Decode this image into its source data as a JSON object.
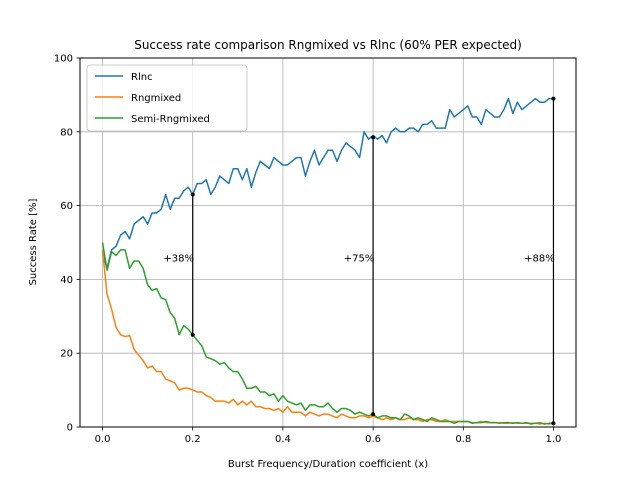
{
  "chart_data": {
    "type": "line",
    "title": "Success rate comparison Rngmixed vs Rlnc (60% PER expected)",
    "xlabel": "Burst Frequency/Duration coefficient (x)",
    "ylabel": "Success Rate [%]",
    "xlim": [
      -0.05,
      1.05
    ],
    "ylim": [
      0,
      100
    ],
    "xticks": [
      0.0,
      0.2,
      0.4,
      0.6,
      0.8,
      1.0
    ],
    "xtick_labels": [
      "0.0",
      "0.2",
      "0.4",
      "0.6",
      "0.8",
      "1.0"
    ],
    "yticks": [
      0,
      20,
      40,
      60,
      80,
      100
    ],
    "ytick_labels": [
      "0",
      "20",
      "40",
      "60",
      "80",
      "100"
    ],
    "grid": true,
    "legend_position": "top-left",
    "series": [
      {
        "name": "Rlnc",
        "color": "#1f77b4",
        "x": [
          0.0,
          0.01,
          0.02,
          0.03,
          0.04,
          0.05,
          0.06,
          0.07,
          0.08,
          0.09,
          0.1,
          0.11,
          0.12,
          0.13,
          0.14,
          0.15,
          0.16,
          0.17,
          0.18,
          0.19,
          0.2,
          0.21,
          0.22,
          0.23,
          0.24,
          0.25,
          0.26,
          0.27,
          0.28,
          0.29,
          0.3,
          0.31,
          0.32,
          0.33,
          0.34,
          0.35,
          0.36,
          0.37,
          0.38,
          0.39,
          0.4,
          0.41,
          0.42,
          0.43,
          0.44,
          0.45,
          0.46,
          0.47,
          0.48,
          0.49,
          0.5,
          0.51,
          0.52,
          0.53,
          0.54,
          0.55,
          0.56,
          0.57,
          0.58,
          0.59,
          0.6,
          0.61,
          0.62,
          0.63,
          0.64,
          0.65,
          0.66,
          0.67,
          0.68,
          0.69,
          0.7,
          0.71,
          0.72,
          0.73,
          0.74,
          0.75,
          0.76,
          0.77,
          0.78,
          0.79,
          0.8,
          0.81,
          0.82,
          0.83,
          0.84,
          0.85,
          0.86,
          0.87,
          0.88,
          0.89,
          0.9,
          0.91,
          0.92,
          0.93,
          0.94,
          0.95,
          0.96,
          0.97,
          0.98,
          0.99,
          1.0
        ],
        "y": [
          47,
          43,
          48,
          49,
          52,
          53,
          51,
          55,
          56,
          57,
          55,
          58,
          58,
          59,
          63,
          59,
          62,
          62,
          64,
          65,
          63,
          66,
          66,
          67,
          63,
          65,
          68,
          67,
          66,
          70,
          70,
          67,
          70,
          65,
          69,
          72,
          71,
          70,
          73,
          72,
          71,
          71,
          72,
          73,
          73,
          68,
          72,
          75,
          71,
          73,
          75,
          75,
          72,
          75,
          77,
          76,
          75,
          73,
          80,
          78,
          79,
          78,
          79,
          77,
          80,
          81,
          80,
          80,
          81,
          81,
          80,
          82,
          82,
          83,
          81,
          81,
          81,
          86,
          84,
          85,
          86,
          87,
          84,
          84,
          82,
          86,
          85,
          84,
          84,
          86,
          89,
          85,
          88,
          86,
          87,
          88,
          89,
          88,
          88,
          89,
          89
        ]
      },
      {
        "name": "Rngmixed",
        "color": "#ff7f0e",
        "x": [
          0.0,
          0.01,
          0.02,
          0.03,
          0.04,
          0.05,
          0.06,
          0.07,
          0.08,
          0.09,
          0.1,
          0.11,
          0.12,
          0.13,
          0.14,
          0.15,
          0.16,
          0.17,
          0.18,
          0.19,
          0.2,
          0.21,
          0.22,
          0.23,
          0.24,
          0.25,
          0.26,
          0.27,
          0.28,
          0.29,
          0.3,
          0.31,
          0.32,
          0.33,
          0.34,
          0.35,
          0.36,
          0.37,
          0.38,
          0.39,
          0.4,
          0.41,
          0.42,
          0.43,
          0.44,
          0.45,
          0.46,
          0.47,
          0.48,
          0.49,
          0.5,
          0.51,
          0.52,
          0.53,
          0.54,
          0.55,
          0.56,
          0.57,
          0.58,
          0.59,
          0.6,
          0.61,
          0.62,
          0.63,
          0.64,
          0.65,
          0.66,
          0.67,
          0.68,
          0.69,
          0.7,
          0.71,
          0.72,
          0.73,
          0.74,
          0.75,
          0.76,
          0.77,
          0.78,
          0.79,
          0.8,
          0.81,
          0.82,
          0.83,
          0.84,
          0.85,
          0.86,
          0.87,
          0.88,
          0.89,
          0.9,
          0.91,
          0.92,
          0.93,
          0.94,
          0.95,
          0.96,
          0.97,
          0.98,
          0.99,
          1.0
        ],
        "y": [
          48,
          36,
          32,
          27,
          25,
          24.5,
          24.8,
          21,
          19.5,
          18,
          16,
          16.5,
          15,
          15,
          13,
          12.5,
          12,
          10,
          10.5,
          10.5,
          10,
          9.5,
          9.5,
          8.5,
          8,
          7,
          7,
          7,
          6.5,
          7.5,
          6,
          7,
          6,
          7,
          5.5,
          5.5,
          5,
          5,
          4.5,
          5,
          4,
          5.5,
          4,
          4,
          4,
          3,
          4,
          3.5,
          3,
          3.5,
          3.5,
          3,
          2.5,
          3.5,
          3,
          2.5,
          2.5,
          3,
          3,
          2.5,
          3,
          2.5,
          2,
          2.5,
          2,
          2.5,
          2,
          2,
          2.5,
          2,
          2,
          1.5,
          2,
          2,
          1.5,
          1.5,
          2,
          1.5,
          1.5,
          1.5,
          1.5,
          1.5,
          1.2,
          1.2,
          1.5,
          1.2,
          1.2,
          1.2,
          1.2,
          1,
          1,
          1.2,
          1,
          1,
          1,
          1,
          1,
          0.8,
          1,
          0.8,
          1
        ]
      },
      {
        "name": "Semi-Rngmixed",
        "color": "#2ca02c",
        "x": [
          0.0,
          0.01,
          0.02,
          0.03,
          0.04,
          0.05,
          0.06,
          0.07,
          0.08,
          0.09,
          0.1,
          0.11,
          0.12,
          0.13,
          0.14,
          0.15,
          0.16,
          0.17,
          0.18,
          0.19,
          0.2,
          0.21,
          0.22,
          0.23,
          0.24,
          0.25,
          0.26,
          0.27,
          0.28,
          0.29,
          0.3,
          0.31,
          0.32,
          0.33,
          0.34,
          0.35,
          0.36,
          0.37,
          0.38,
          0.39,
          0.4,
          0.41,
          0.42,
          0.43,
          0.44,
          0.45,
          0.46,
          0.47,
          0.48,
          0.49,
          0.5,
          0.51,
          0.52,
          0.53,
          0.54,
          0.55,
          0.56,
          0.57,
          0.58,
          0.59,
          0.6,
          0.61,
          0.62,
          0.63,
          0.64,
          0.65,
          0.66,
          0.67,
          0.68,
          0.69,
          0.7,
          0.71,
          0.72,
          0.73,
          0.74,
          0.75,
          0.76,
          0.77,
          0.78,
          0.79,
          0.8,
          0.81,
          0.82,
          0.83,
          0.84,
          0.85,
          0.86,
          0.87,
          0.88,
          0.89,
          0.9,
          0.91,
          0.92,
          0.93,
          0.94,
          0.95,
          0.96,
          0.97,
          0.98,
          0.99,
          1.0
        ],
        "y": [
          50,
          42.5,
          47.5,
          46.5,
          48,
          48,
          43,
          45,
          45,
          43,
          38.5,
          37,
          37.5,
          35,
          34.5,
          31,
          29.5,
          25,
          27.5,
          26.5,
          25,
          23.5,
          22,
          19,
          18.5,
          18,
          17,
          17.5,
          16,
          15,
          15,
          13,
          10.5,
          10.5,
          11,
          9.5,
          9.5,
          8.5,
          9,
          7,
          8.5,
          7,
          6.5,
          6,
          6.5,
          4.5,
          6,
          6,
          5.5,
          5.5,
          6.5,
          5,
          4,
          5,
          5,
          4.5,
          3.5,
          4,
          3.5,
          3,
          3.5,
          2.5,
          3,
          3,
          2.5,
          2.5,
          2,
          3.5,
          3,
          2,
          2.5,
          2,
          1.5,
          2.5,
          2,
          1.5,
          1.5,
          1.5,
          1,
          1.5,
          1.5,
          1.5,
          1,
          1.2,
          1.2,
          1.5,
          1.2,
          1.2,
          1,
          1.2,
          1.2,
          1,
          1.2,
          1,
          1.2,
          0.8,
          1,
          1.2,
          0.8,
          1,
          1
        ]
      }
    ],
    "annotations": [
      {
        "text": "+38%",
        "x": 0.2,
        "y_low": 25,
        "y_high": 63,
        "label_x": 0.135,
        "label_y": 46
      },
      {
        "text": "+75%",
        "x": 0.6,
        "y_low": 3.5,
        "y_high": 78.5,
        "label_x": 0.535,
        "label_y": 46
      },
      {
        "text": "+88%",
        "x": 1.0,
        "y_low": 1,
        "y_high": 89,
        "label_x": 0.935,
        "label_y": 46
      }
    ]
  }
}
